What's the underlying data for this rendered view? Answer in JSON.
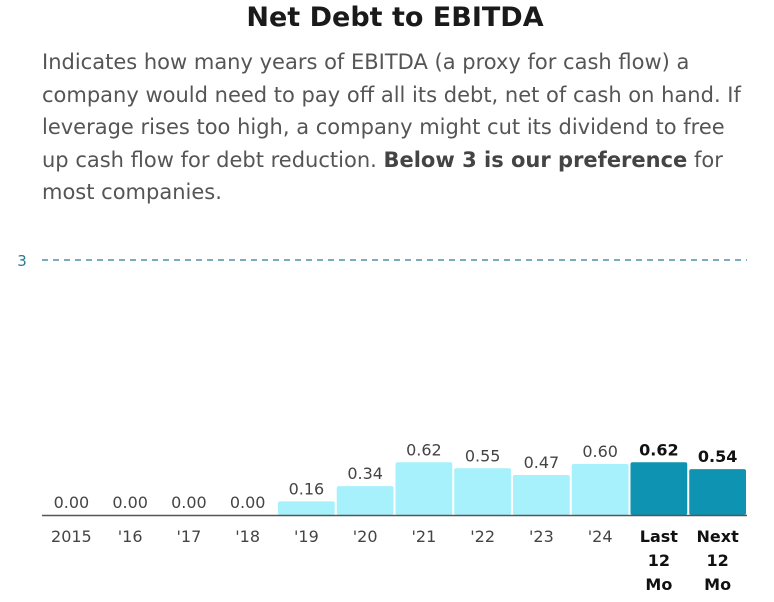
{
  "header": {
    "title": "Net Debt to EBITDA",
    "desc_part1": "Indicates how many years of EBITDA (a proxy for cash flow) a company would need to pay off all its debt, net of cash on hand. If leverage rises too high, a company might cut its dividend to free up cash flow for debt reduction. ",
    "desc_bold": "Below 3 is our preference",
    "desc_part2": " for most companies."
  },
  "colors": {
    "bar": "#a6f1fb",
    "bar_highlight": "#0e93b2",
    "reference_line": "#2a7a90",
    "axis": "#555555"
  },
  "chart_data": {
    "type": "bar",
    "title": "Net Debt to EBITDA",
    "categories": [
      "2015",
      "'16",
      "'17",
      "'18",
      "'19",
      "'20",
      "'21",
      "'22",
      "'23",
      "'24",
      "Last 12 Mo",
      "Next 12 Mo"
    ],
    "values": [
      0.0,
      0.0,
      0.0,
      0.0,
      0.16,
      0.34,
      0.62,
      0.55,
      0.47,
      0.6,
      0.62,
      0.54
    ],
    "value_labels": [
      "0.00",
      "0.00",
      "0.00",
      "0.00",
      "0.16",
      "0.34",
      "0.62",
      "0.55",
      "0.47",
      "0.60",
      "0.62",
      "0.54"
    ],
    "highlighted": [
      false,
      false,
      false,
      false,
      false,
      false,
      false,
      false,
      false,
      false,
      true,
      true
    ],
    "reference_line": {
      "value": 3,
      "label": "3",
      "style": "dashed"
    },
    "ylim": [
      0,
      3
    ],
    "xlabel": "",
    "ylabel": "",
    "grid": false
  }
}
